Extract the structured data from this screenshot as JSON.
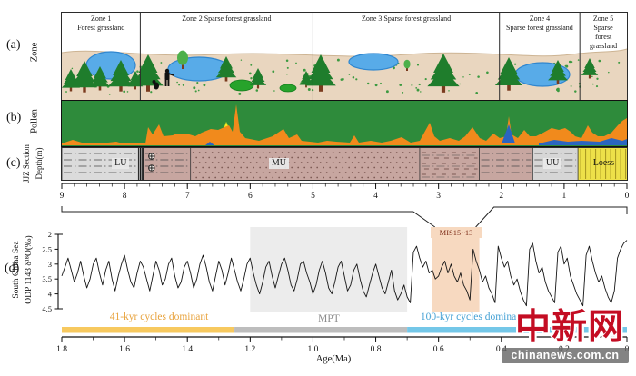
{
  "panels": {
    "a_label": "(a)",
    "b_label": "(b)",
    "c_label": "(c)",
    "d_label": "(d)",
    "a_axis": "Zone",
    "b_axis": "Pollen",
    "c_axis_line1": "JJZ Section",
    "c_axis_line2": "Depth(m)",
    "d_axis_line1": "South China Sea",
    "d_axis_line2": "ODP 1143 δ¹⁸O(‰)"
  },
  "zones": [
    {
      "label": "Zone 1\nForest grassland",
      "depth_from": 9.0,
      "depth_to": 7.75
    },
    {
      "label": "Zone 2 Sparse forest grassland",
      "depth_from": 7.75,
      "depth_to": 5.0
    },
    {
      "label": "Zone 3 Sparse  forest grassland",
      "depth_from": 5.0,
      "depth_to": 2.03
    },
    {
      "label": "Zone 4\nSparse forest grassland",
      "depth_from": 2.03,
      "depth_to": 0.75
    },
    {
      "label": "Zone 5\nSparse\nforest\ngrassland",
      "depth_from": 0.75,
      "depth_to": 0.0
    }
  ],
  "landscape": {
    "ground_color": "#e9d6bf",
    "ground_edge": "#cdb493",
    "sky_color": "#ffffff",
    "conifer_color": "#1f7d2c",
    "deciduous_color": "#4db04a",
    "trunk_color": "#7a3b1e",
    "lake_fill": "#58abe8",
    "lake_edge": "#2f86cf",
    "bush_fill": "#27a32b",
    "bush_edge": "#157d1d",
    "grass_color": "#3c9a40",
    "figure_color": "#111111",
    "trees": [
      [
        10,
        86,
        24,
        "c"
      ],
      [
        25,
        87,
        34,
        "c"
      ],
      [
        42,
        85,
        26,
        "c"
      ],
      [
        65,
        86,
        34,
        "c"
      ],
      [
        81,
        84,
        20,
        "c"
      ],
      [
        95,
        86,
        40,
        "c"
      ],
      [
        133,
        62,
        20,
        "d"
      ],
      [
        181,
        75,
        27,
        "c"
      ],
      [
        216,
        83,
        22,
        "c"
      ],
      [
        269,
        82,
        18,
        "c"
      ],
      [
        285,
        86,
        40,
        "c"
      ],
      [
        380,
        64,
        12,
        "d"
      ],
      [
        420,
        87,
        42,
        "c"
      ],
      [
        492,
        85,
        36,
        "c"
      ],
      [
        546,
        78,
        26,
        "c"
      ],
      [
        581,
        72,
        22,
        "c"
      ]
    ],
    "lakes": [
      [
        54,
        58,
        27,
        15
      ],
      [
        151,
        62,
        34,
        13
      ],
      [
        343,
        54,
        27,
        9
      ],
      [
        529,
        68,
        30,
        13
      ]
    ],
    "bushes": [
      [
        198,
        80,
        13,
        6
      ],
      [
        249,
        83,
        9,
        4
      ]
    ],
    "human": [
      116,
      81
    ],
    "creature": [
      104,
      84
    ]
  },
  "chart_data": [
    {
      "type": "area",
      "name": "pollen-percentage-diagram",
      "background_series": {
        "name": "arboreal pollen (green field)",
        "color": "#2e8b3b"
      },
      "panel_size": [
        622,
        49
      ],
      "series": [
        {
          "name": "yellow pollen peak",
          "color": "#f4ea1f",
          "points": [
            [
              172,
              47
            ],
            [
              181,
              23
            ],
            [
              186,
              35
            ],
            [
              179,
              47
            ]
          ]
        },
        {
          "name": "herb pollen (orange)",
          "color": "#f18a1c",
          "points": [
            [
              0,
              47
            ],
            [
              12,
              43
            ],
            [
              22,
              46
            ],
            [
              42,
              47
            ],
            [
              60,
              45
            ],
            [
              67,
              47
            ],
            [
              92,
              47
            ],
            [
              95,
              29
            ],
            [
              100,
              37
            ],
            [
              107,
              26
            ],
            [
              112,
              39
            ],
            [
              122,
              38
            ],
            [
              127,
              36
            ],
            [
              137,
              36
            ],
            [
              147,
              39
            ],
            [
              154,
              35
            ],
            [
              164,
              31
            ],
            [
              172,
              32
            ],
            [
              179,
              29
            ],
            [
              184,
              27
            ],
            [
              188,
              34
            ],
            [
              192,
              4
            ],
            [
              196,
              34
            ],
            [
              202,
              41
            ],
            [
              217,
              44
            ],
            [
              232,
              39
            ],
            [
              244,
              31
            ],
            [
              250,
              41
            ],
            [
              259,
              37
            ],
            [
              264,
              44
            ],
            [
              282,
              46
            ],
            [
              292,
              44
            ],
            [
              302,
              45
            ],
            [
              317,
              46
            ],
            [
              322,
              38
            ],
            [
              327,
              46
            ],
            [
              340,
              44
            ],
            [
              352,
              46
            ],
            [
              362,
              44
            ],
            [
              374,
              40
            ],
            [
              384,
              46
            ],
            [
              394,
              44
            ],
            [
              405,
              24
            ],
            [
              410,
              39
            ],
            [
              416,
              44
            ],
            [
              427,
              41
            ],
            [
              437,
              44
            ],
            [
              444,
              39
            ],
            [
              452,
              29
            ],
            [
              460,
              41
            ],
            [
              467,
              44
            ],
            [
              475,
              36
            ],
            [
              482,
              41
            ],
            [
              489,
              39
            ],
            [
              492,
              17
            ],
            [
              495,
              37
            ],
            [
              502,
              41
            ],
            [
              509,
              32
            ],
            [
              515,
              39
            ],
            [
              522,
              39
            ],
            [
              530,
              35
            ],
            [
              539,
              30
            ],
            [
              547,
              32
            ],
            [
              554,
              30
            ],
            [
              560,
              34
            ],
            [
              565,
              39
            ],
            [
              572,
              41
            ],
            [
              579,
              27
            ],
            [
              584,
              35
            ],
            [
              590,
              39
            ],
            [
              597,
              39
            ],
            [
              605,
              35
            ],
            [
              612,
              27
            ],
            [
              617,
              22
            ],
            [
              622,
              19
            ],
            [
              622,
              49
            ],
            [
              0,
              49
            ]
          ]
        },
        {
          "name": "aquatic pollen spike (blue)",
          "color": "#2b65c0",
          "points": [
            [
              484,
              47
            ],
            [
              492,
              26
            ],
            [
              499,
              47
            ]
          ]
        },
        {
          "name": "aquatic pollen small (blue)",
          "color": "#2b65c0",
          "points": [
            [
              158,
              49
            ],
            [
              163,
              45
            ],
            [
              168,
              49
            ]
          ]
        },
        {
          "name": "aquatic pollen band (blue)",
          "color": "#2b65c0",
          "points": [
            [
              525,
              47
            ],
            [
              542,
              43
            ],
            [
              557,
              45
            ],
            [
              572,
              44
            ],
            [
              592,
              45
            ],
            [
              605,
              41
            ],
            [
              617,
              44
            ],
            [
              622,
              42
            ],
            [
              622,
              49
            ],
            [
              525,
              49
            ]
          ]
        }
      ]
    },
    {
      "type": "table",
      "name": "jjz-section-lithology",
      "depth_ticks": [
        9,
        8,
        7,
        6,
        5,
        4,
        3,
        2,
        1,
        0
      ],
      "depth_minor_step": 0.2,
      "sample_symbol": "⊕",
      "units": [
        {
          "name": "LU",
          "from": 9.0,
          "to": 7.78,
          "pattern": "dashdot",
          "fill": "#dbdbdb",
          "line": "#4a4a4a"
        },
        {
          "name": "",
          "from": 7.78,
          "to": 7.7,
          "pattern": "hatch",
          "fill": "#1a1a1a",
          "line": "#ffffff"
        },
        {
          "name": "",
          "from": 7.7,
          "to": 6.95,
          "pattern": "dashdot",
          "fill": "#c7a6a0",
          "line": "#4a4a4a",
          "symbols": true
        },
        {
          "name": "MU",
          "from": 6.95,
          "to": 3.3,
          "pattern": "dots",
          "fill": "#c7a6a0",
          "line": "#7d5a55"
        },
        {
          "name": "",
          "from": 3.3,
          "to": 2.35,
          "pattern": "dashes",
          "fill": "#c7a6a0",
          "line": "#7d5a55"
        },
        {
          "name": "",
          "from": 2.35,
          "to": 1.5,
          "pattern": "dashdot",
          "fill": "#c7a6a0",
          "line": "#4a4a4a"
        },
        {
          "name": "UU",
          "from": 1.5,
          "to": 0.78,
          "pattern": "dashdot",
          "fill": "#d6d6d6",
          "line": "#4a4a4a"
        },
        {
          "name": "Loess",
          "from": 0.78,
          "to": 0.0,
          "pattern": "vlines",
          "fill": "#ede049",
          "line": "#a59420"
        }
      ],
      "unit_label_depths": {
        "LU": 8.0,
        "MU": 5.5,
        "UU": 1.13,
        "Loess": 0.38
      }
    },
    {
      "type": "line",
      "name": "south-china-sea-odp1143-d18O",
      "ylabel": "South China Sea ODP 1143 δ¹⁸O(‰)",
      "xlabel": "Age(Ma)",
      "x_range": [
        1.8,
        0
      ],
      "y_range": [
        2,
        4.5
      ],
      "y_inverted": true,
      "x_tick_labels": [
        "1.8",
        "1.6",
        "1.4",
        "1.2",
        "1.0",
        "0.8",
        "0.6",
        "0.4",
        "0.2",
        "0"
      ],
      "x_major_ticks": [
        1.8,
        1.6,
        1.4,
        1.2,
        1.0,
        0.8,
        0.6,
        0.4,
        0.2,
        0
      ],
      "x_minor_step": 0.1,
      "y_ticks": [
        2,
        2.5,
        3,
        3.5,
        4,
        4.5
      ],
      "y_tick_labels": [
        "2",
        "2.5",
        "3",
        "3.5",
        "4",
        "4.5"
      ],
      "line_color": "#151515",
      "series_age_start": 1.8,
      "series_age_step": -0.01,
      "values": [
        3.4,
        3.1,
        2.8,
        3.2,
        3.6,
        3.3,
        2.9,
        3.4,
        3.8,
        3.5,
        3.0,
        2.8,
        3.3,
        3.7,
        3.2,
        2.9,
        3.5,
        3.9,
        3.4,
        3.0,
        2.7,
        3.2,
        3.6,
        3.8,
        3.3,
        2.9,
        3.1,
        3.5,
        3.9,
        3.4,
        2.9,
        3.2,
        3.7,
        3.5,
        3.0,
        2.8,
        3.4,
        3.8,
        3.6,
        3.1,
        2.9,
        3.3,
        3.8,
        3.5,
        3.0,
        2.7,
        3.1,
        3.6,
        3.9,
        3.4,
        2.9,
        3.2,
        3.7,
        3.3,
        2.8,
        3.2,
        3.6,
        3.9,
        3.5,
        3.0,
        2.8,
        3.3,
        3.7,
        4.0,
        3.6,
        3.1,
        2.9,
        3.4,
        3.8,
        3.4,
        3.0,
        2.8,
        3.2,
        3.7,
        3.9,
        3.5,
        3.0,
        2.9,
        3.3,
        3.6,
        4.0,
        3.7,
        3.2,
        2.9,
        3.3,
        3.8,
        4.0,
        3.6,
        3.1,
        2.9,
        3.4,
        3.9,
        3.7,
        3.2,
        3.0,
        3.5,
        3.9,
        4.1,
        3.7,
        3.3,
        3.0,
        3.4,
        3.8,
        4.0,
        3.6,
        3.2,
        3.9,
        4.2,
        4.0,
        3.7,
        4.1,
        4.3,
        2.6,
        2.4,
        2.8,
        3.1,
        2.9,
        3.3,
        3.2,
        3.5,
        3.4,
        3.1,
        2.9,
        3.3,
        3.0,
        3.4,
        3.6,
        3.3,
        3.7,
        3.9,
        4.2,
        2.5,
        2.9,
        3.2,
        3.6,
        3.4,
        3.8,
        4.0,
        4.3,
        2.4,
        2.8,
        3.1,
        2.9,
        3.4,
        3.7,
        3.5,
        3.9,
        4.2,
        4.4,
        2.5,
        2.3,
        2.9,
        3.3,
        3.1,
        3.6,
        3.9,
        4.1,
        4.3,
        2.6,
        2.4,
        3.0,
        2.8,
        3.4,
        3.7,
        4.0,
        4.2,
        4.4,
        2.7,
        2.4,
        2.9,
        3.3,
        3.6,
        3.4,
        3.8,
        4.1,
        4.3,
        3.9,
        2.8,
        2.5,
        2.3,
        2.2
      ],
      "highlight_boxes": [
        {
          "name": "MPT shading",
          "from_ma": 1.2,
          "to_ma": 0.7,
          "color": "#ececec"
        },
        {
          "name": "MIS15~13 shading",
          "from_ma": 0.62,
          "to_ma": 0.47,
          "color": "#f7d9c0"
        }
      ],
      "cycle_bars": [
        {
          "label": "41-kyr cycles dominant",
          "from_ma": 1.8,
          "to_ma": 1.25,
          "bar_color": "#f7c95f",
          "text_color": "#e8a33d"
        },
        {
          "label": "MPT",
          "from_ma": 1.25,
          "to_ma": 0.7,
          "bar_color": "#bdbdbd",
          "text_color": "#8c8c8c"
        },
        {
          "label": "100-kyr cycles dominant",
          "from_ma": 0.7,
          "to_ma": 0.0,
          "bar_color": "#74c7e8",
          "text_color": "#46a2d5"
        }
      ]
    }
  ],
  "annotations": {
    "mis_label": "MIS15~13",
    "mis_text_color": "#7c2a16",
    "cycles_41": "41-kyr cycles dominant",
    "mpt": "MPT",
    "cycles_100": "100-kyr cycles dominant",
    "age_axis_label": "Age(Ma)"
  },
  "watermark": {
    "logo_text": "中新网",
    "url_text": "chinanews.com.cn",
    "logo_color": "#c40d23"
  }
}
